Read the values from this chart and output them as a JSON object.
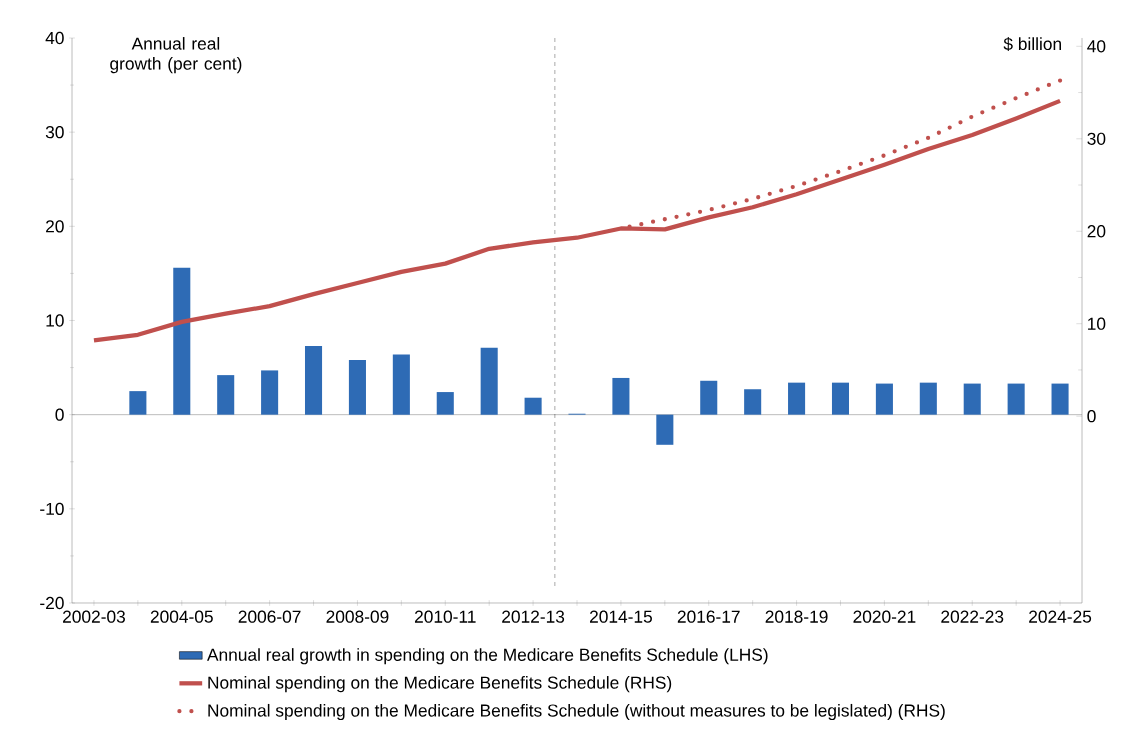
{
  "chart_data": {
    "type": "bar",
    "ylabel": "Annual real growth (per cent)",
    "y2label": "$ billion",
    "categories": [
      "2002-03",
      null,
      "2004-05",
      null,
      "2006-07",
      null,
      "2008-09",
      null,
      "2010-11",
      null,
      "2012-13",
      null,
      "2014-15",
      null,
      "2016-17",
      null,
      "2018-19",
      null,
      "2020-21",
      null,
      "2022-23",
      null,
      "2024-25"
    ],
    "series": [
      {
        "name": "Annual real growth in spending on the Medicare Benefits Schedule (LHS)",
        "color": "#2e6bb5",
        "values": [
          null,
          2.5,
          15.6,
          4.2,
          4.7,
          7.3,
          5.8,
          6.4,
          2.4,
          7.1,
          1.8,
          0.1,
          3.9,
          -3.2,
          3.6,
          2.7,
          3.4,
          3.4,
          3.3,
          3.4,
          3.3,
          3.3,
          3.3
        ]
      },
      {
        "name": "Nominal spending on the Medicare Benefits Schedule (RHS)",
        "type": "line",
        "axis": "y2",
        "line_style": "solid",
        "color": "#c0504d",
        "values": [
          8.2,
          8.8,
          10.2,
          11.1,
          11.9,
          13.2,
          14.4,
          15.6,
          16.5,
          18.1,
          18.8,
          19.3,
          20.3,
          20.2,
          21.5,
          22.6,
          24.0,
          25.6,
          27.2,
          28.9,
          30.4,
          32.2,
          34.1
        ]
      },
      {
        "name": "Nominal spending on the Medicare Benefits Schedule (without measures to be legislated) (RHS)",
        "type": "line",
        "axis": "y2",
        "line_style": "dotted",
        "color": "#c0504d",
        "values": [
          null,
          null,
          null,
          null,
          null,
          null,
          null,
          null,
          null,
          null,
          null,
          null,
          20.3,
          21.3,
          22.3,
          23.5,
          24.9,
          26.5,
          28.2,
          30.1,
          32.4,
          34.4,
          36.3
        ]
      }
    ],
    "ylim": [
      -20,
      40
    ],
    "yticks": [
      -20,
      -10,
      0,
      10,
      20,
      30,
      40
    ],
    "y2lim": [
      -20.2,
      40.9
    ],
    "y2ticks": [
      0,
      10,
      20,
      30,
      40
    ],
    "ref_lines": [
      {
        "axis": "x",
        "value": "2012-13",
        "line_style": "dashed",
        "color": "#000000"
      }
    ],
    "legend": "bottom",
    "grid": false,
    "marker": "none"
  }
}
